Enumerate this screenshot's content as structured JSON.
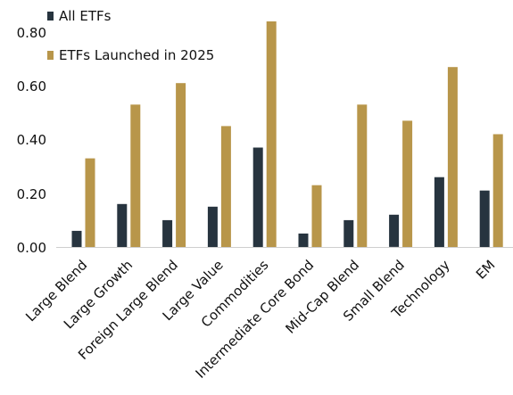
{
  "chart_data": {
    "type": "bar",
    "title": "",
    "xlabel": "",
    "ylabel": "",
    "categories": [
      "Large Blend",
      "Large Growth",
      "Foreign Large Blend",
      "Large Value",
      "Commodities",
      "Intermediate Core Bond",
      "Mid-Cap Blend",
      "Small Blend",
      "Technology",
      "EM"
    ],
    "series": [
      {
        "name": "All ETFs",
        "color": "#27343f",
        "values": [
          0.06,
          0.16,
          0.1,
          0.15,
          0.37,
          0.05,
          0.1,
          0.12,
          0.26,
          0.21
        ]
      },
      {
        "name": "ETFs Launched in 2025",
        "color": "#b8964a",
        "values": [
          0.33,
          0.53,
          0.61,
          0.45,
          0.84,
          0.23,
          0.53,
          0.47,
          0.67,
          0.42
        ]
      }
    ],
    "ylim": [
      0,
      0.8
    ],
    "yticks": [
      "0.00",
      "0.20",
      "0.40",
      "0.60",
      "0.80"
    ],
    "grid": false,
    "legend_position": "top-left"
  }
}
